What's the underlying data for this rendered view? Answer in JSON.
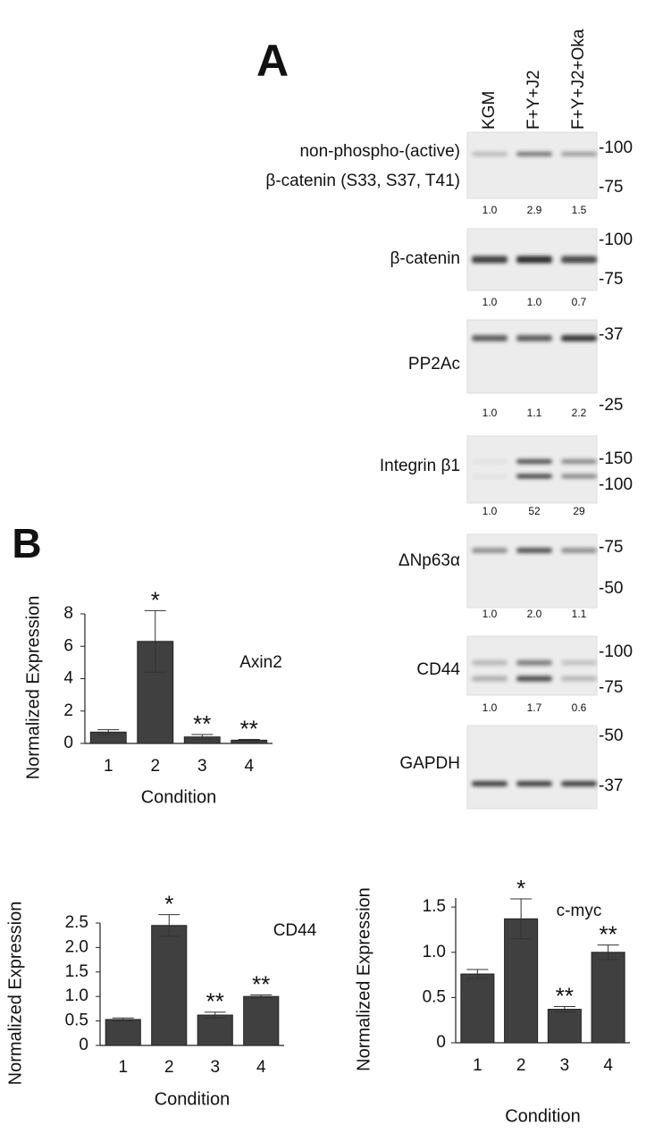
{
  "panel_a": {
    "letter": "A",
    "lanes": [
      "KGM",
      "F+Y+J2",
      "F+Y+J2+Oka"
    ],
    "blots": [
      {
        "label_lines": [
          "non-phospho-(active)",
          "β-catenin (S33, S37, T41)"
        ],
        "markers": [
          "-100",
          "-75"
        ],
        "quantities": [
          "1.0",
          "2.9",
          "1.5"
        ]
      },
      {
        "label_lines": [
          "β-catenin"
        ],
        "markers": [
          "-100",
          "-75"
        ],
        "quantities": [
          "1.0",
          "1.0",
          "0.7"
        ]
      },
      {
        "label_lines": [
          "PP2Ac"
        ],
        "markers": [
          "-37",
          "-25"
        ],
        "quantities": [
          "1.0",
          "1.1",
          "2.2"
        ]
      },
      {
        "label_lines": [
          "Integrin β1"
        ],
        "markers": [
          "-150",
          "-100"
        ],
        "quantities": [
          "1.0",
          "52",
          "29"
        ]
      },
      {
        "label_lines": [
          "ΔNp63α"
        ],
        "markers": [
          "-75",
          "-50"
        ],
        "quantities": [
          "1.0",
          "2.0",
          "1.1"
        ]
      },
      {
        "label_lines": [
          "CD44"
        ],
        "markers": [
          "-100",
          "-75"
        ],
        "quantities": [
          "1.0",
          "1.7",
          "0.6"
        ]
      },
      {
        "label_lines": [
          "GAPDH"
        ],
        "markers": [
          "-50",
          "-37"
        ]
      }
    ]
  },
  "panel_b": {
    "letter": "B"
  },
  "chart_data": [
    {
      "type": "bar",
      "title": "Axin2",
      "y_label": "Normalized Expression",
      "x_label": "Condition",
      "categories": [
        "1",
        "2",
        "3",
        "4"
      ],
      "values": [
        0.7,
        6.3,
        0.4,
        0.2
      ],
      "errors": [
        0.15,
        1.9,
        0.15,
        0.05
      ],
      "significance": [
        null,
        "*",
        "**",
        "**"
      ],
      "color": "#404040",
      "ylim": [
        0,
        8
      ],
      "yticks": [
        0,
        2,
        4,
        6,
        8
      ]
    },
    {
      "type": "bar",
      "title": "CD44",
      "y_label": "Normalized Expression",
      "x_label": "Condition",
      "categories": [
        "1",
        "2",
        "3",
        "4"
      ],
      "values": [
        0.53,
        2.45,
        0.62,
        1.0
      ],
      "errors": [
        0.03,
        0.22,
        0.06,
        0.03
      ],
      "significance": [
        null,
        "*",
        "**",
        "**"
      ],
      "color": "#404040",
      "ylim": [
        0,
        2.5
      ],
      "yticks": [
        0,
        0.5,
        {
          "value": 1,
          "label": "1.0"
        },
        1.5,
        {
          "value": 2,
          "label": "2.0"
        },
        2.5
      ]
    },
    {
      "type": "bar",
      "title": "c-myc",
      "y_label": "Normalized Expression",
      "x_label": "Condition",
      "categories": [
        "1",
        "2",
        "3",
        "4"
      ],
      "values": [
        0.76,
        1.37,
        0.37,
        1.0
      ],
      "errors": [
        0.05,
        0.22,
        0.03,
        0.08
      ],
      "significance": [
        null,
        "*",
        "**",
        "**"
      ],
      "color": "#404040",
      "ylim": [
        0,
        1.6
      ],
      "yticks": [
        0,
        0.5,
        {
          "value": 1,
          "label": "1.0"
        },
        1.5
      ]
    }
  ]
}
